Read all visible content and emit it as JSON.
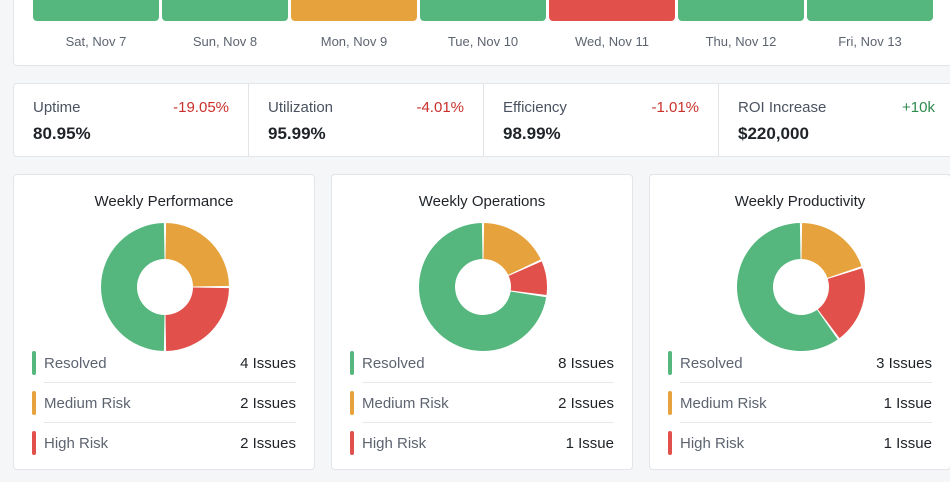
{
  "colors": {
    "good": "#55b77e",
    "warn": "#e6a23c",
    "bad": "#e1504a",
    "neg_text": "#c9302c",
    "pos_text": "#2f8a4f"
  },
  "status_days": [
    {
      "label": "Sat, Nov 7",
      "status": "good"
    },
    {
      "label": "Sun, Nov 8",
      "status": "good"
    },
    {
      "label": "Mon, Nov 9",
      "status": "warn"
    },
    {
      "label": "Tue, Nov 10",
      "status": "good"
    },
    {
      "label": "Wed, Nov 11",
      "status": "bad"
    },
    {
      "label": "Thu, Nov 12",
      "status": "good"
    },
    {
      "label": "Fri, Nov 13",
      "status": "good"
    }
  ],
  "kpis": [
    {
      "label": "Uptime",
      "change": "-19.05%",
      "trend": "down",
      "value": "80.95%"
    },
    {
      "label": "Utilization",
      "change": "-4.01%",
      "trend": "down",
      "value": "95.99%"
    },
    {
      "label": "Efficiency",
      "change": "-1.01%",
      "trend": "down",
      "value": "98.99%"
    },
    {
      "label": "ROI Increase",
      "change": "+10k",
      "trend": "up",
      "value": "$220,000"
    }
  ],
  "donuts": [
    {
      "title": "Weekly Performance",
      "items": [
        {
          "label": "Resolved",
          "count": 4,
          "count_text": "4 Issues",
          "status": "good"
        },
        {
          "label": "Medium Risk",
          "count": 2,
          "count_text": "2 Issues",
          "status": "warn"
        },
        {
          "label": "High Risk",
          "count": 2,
          "count_text": "2 Issues",
          "status": "bad"
        }
      ]
    },
    {
      "title": "Weekly Operations",
      "items": [
        {
          "label": "Resolved",
          "count": 8,
          "count_text": "8 Issues",
          "status": "good"
        },
        {
          "label": "Medium Risk",
          "count": 2,
          "count_text": "2 Issues",
          "status": "warn"
        },
        {
          "label": "High Risk",
          "count": 1,
          "count_text": "1 Issue",
          "status": "bad"
        }
      ]
    },
    {
      "title": "Weekly Productivity",
      "items": [
        {
          "label": "Resolved",
          "count": 3,
          "count_text": "3 Issues",
          "status": "good"
        },
        {
          "label": "Medium Risk",
          "count": 1,
          "count_text": "1 Issue",
          "status": "warn"
        },
        {
          "label": "High Risk",
          "count": 1,
          "count_text": "1 Issue",
          "status": "bad"
        }
      ]
    }
  ]
}
